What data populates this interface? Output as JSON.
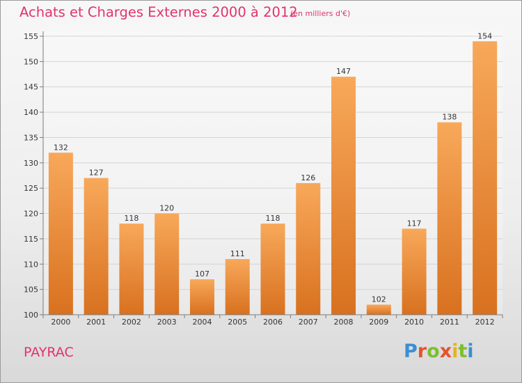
{
  "title": "Achats et Charges Externes 2000 à 2012",
  "unit_note": "(en milliers d'€)",
  "place": "PAYRAC",
  "logo": {
    "text": "Proxiti",
    "letter_colors": [
      "#3a8fd4",
      "#e8522b",
      "#7cbf2c",
      "#e8522b",
      "#e8b21a",
      "#7cbf2c",
      "#3a8fd4"
    ]
  },
  "colors": {
    "title": "#e0336e",
    "bar_light": "#f8a85a",
    "bar_dark": "#d8711f",
    "grid": "#d4d4d4",
    "axis": "#7a7a7a"
  },
  "chart_data": {
    "type": "bar",
    "categories": [
      "2000",
      "2001",
      "2002",
      "2003",
      "2004",
      "2005",
      "2006",
      "2007",
      "2008",
      "2009",
      "2010",
      "2011",
      "2012"
    ],
    "values": [
      132,
      127,
      118,
      120,
      107,
      111,
      118,
      126,
      147,
      102,
      117,
      138,
      154
    ],
    "ylim": [
      100,
      155
    ],
    "yticks": [
      100,
      105,
      110,
      115,
      120,
      125,
      130,
      135,
      140,
      145,
      150,
      155
    ],
    "grid": true,
    "data_labels": true,
    "legend": "none"
  }
}
